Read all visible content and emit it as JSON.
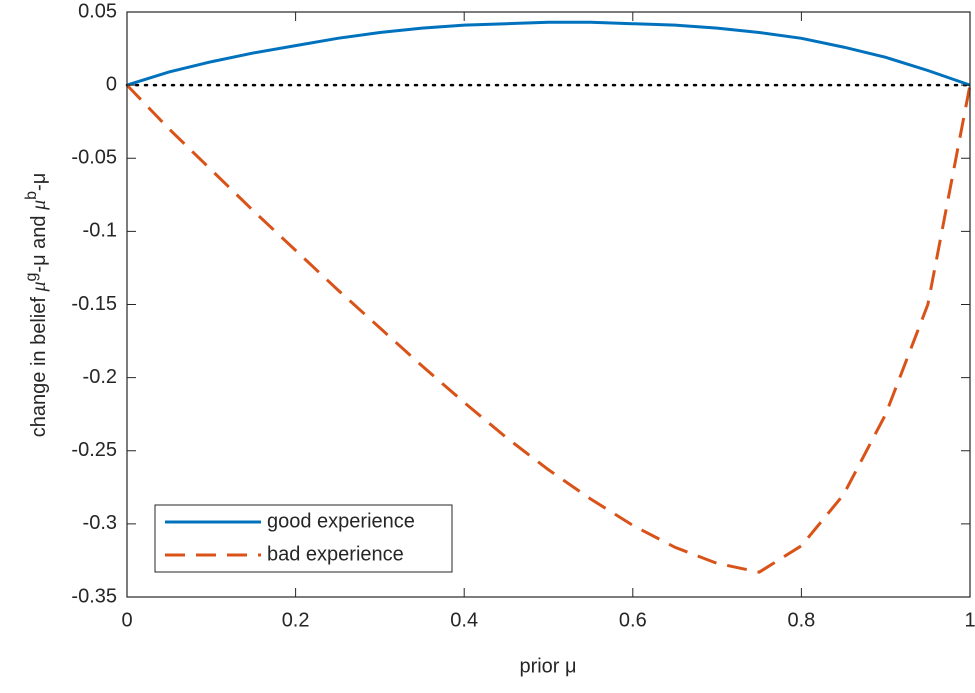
{
  "chart_data": {
    "type": "line",
    "xlabel": "prior μ",
    "ylabel": [
      "change in belief ",
      "μ",
      "g",
      "-μ and ",
      "μ",
      "b",
      "-μ"
    ],
    "x": [
      0,
      0.05,
      0.1,
      0.15,
      0.2,
      0.25,
      0.3,
      0.35,
      0.4,
      0.45,
      0.5,
      0.55,
      0.6,
      0.65,
      0.7,
      0.75,
      0.8,
      0.85,
      0.9,
      0.95,
      1
    ],
    "series": [
      {
        "name": "good experience",
        "color": "#0072bd",
        "dash": "solid",
        "values": [
          0,
          0.009,
          0.016,
          0.022,
          0.027,
          0.032,
          0.036,
          0.039,
          0.041,
          0.042,
          0.043,
          0.043,
          0.042,
          0.041,
          0.039,
          0.036,
          0.032,
          0.026,
          0.019,
          0.01,
          0
        ]
      },
      {
        "name": "bad experience",
        "color": "#d95319",
        "dash": "dashed",
        "values": [
          0,
          -0.03,
          -0.058,
          -0.086,
          -0.113,
          -0.14,
          -0.166,
          -0.192,
          -0.217,
          -0.241,
          -0.263,
          -0.283,
          -0.301,
          -0.316,
          -0.327,
          -0.333,
          -0.315,
          -0.28,
          -0.225,
          -0.15,
          0
        ]
      }
    ],
    "reference_line": 0,
    "xlim": [
      0,
      1
    ],
    "xticks": [
      0,
      0.2,
      0.4,
      0.6,
      0.8,
      1
    ],
    "ylim": [
      -0.35,
      0.05
    ],
    "yticks": [
      0.05,
      0,
      -0.05,
      -0.1,
      -0.15,
      -0.2,
      -0.25,
      -0.3,
      -0.35
    ],
    "legend": "lower left"
  }
}
